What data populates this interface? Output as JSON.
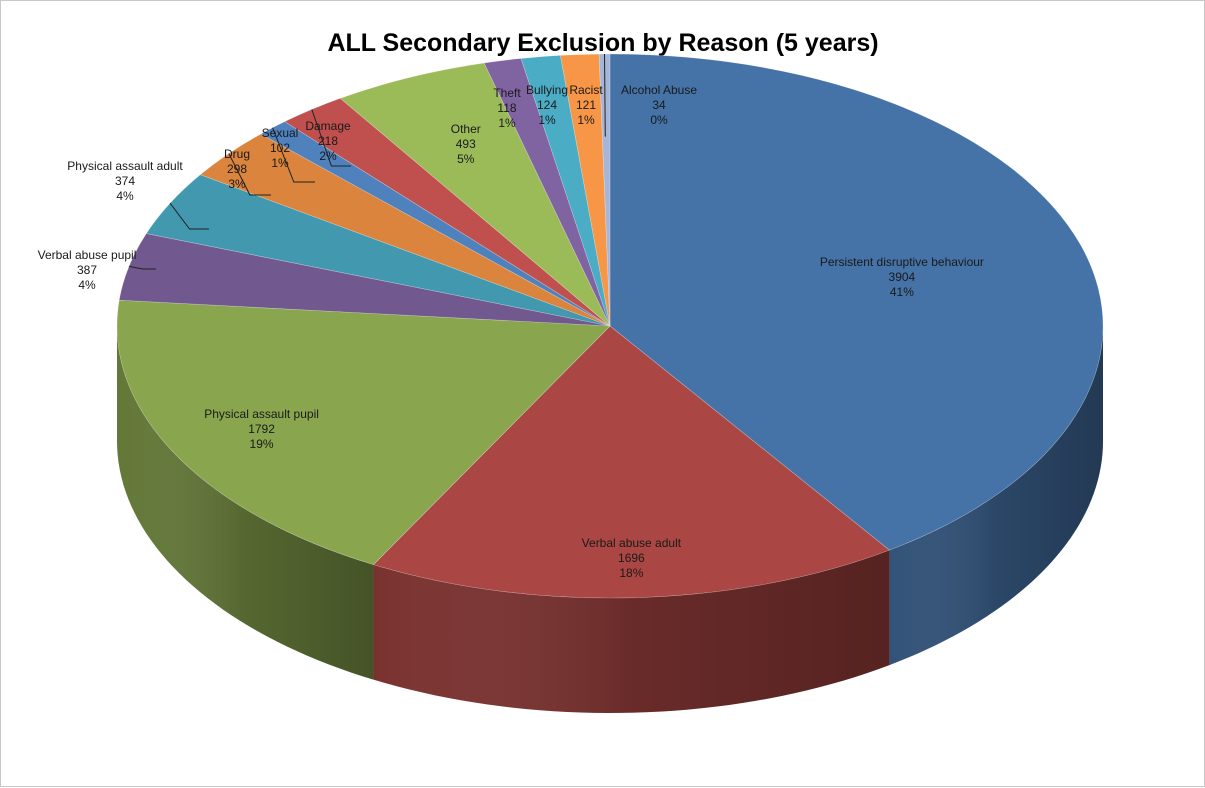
{
  "chart_data": {
    "type": "pie",
    "title": "ALL Secondary Exclusion by Reason (5 years)",
    "slices": [
      {
        "label": "Persistent disruptive behaviour",
        "value": 3904,
        "percent": "41%",
        "color": "#4572A7"
      },
      {
        "label": "Verbal abuse adult",
        "value": 1696,
        "percent": "18%",
        "color": "#AA4643"
      },
      {
        "label": "Physical assault pupil",
        "value": 1792,
        "percent": "19%",
        "color": "#89A54E"
      },
      {
        "label": "Verbal abuse pupil",
        "value": 387,
        "percent": "4%",
        "color": "#71588F"
      },
      {
        "label": "Physical assault adult",
        "value": 374,
        "percent": "4%",
        "color": "#4198AF"
      },
      {
        "label": "Drug",
        "value": 298,
        "percent": "3%",
        "color": "#DB843D"
      },
      {
        "label": "Sexual",
        "value": 102,
        "percent": "1%",
        "color": "#4F81BD"
      },
      {
        "label": "Damage",
        "value": 218,
        "percent": "2%",
        "color": "#C0504D"
      },
      {
        "label": "Other",
        "value": 493,
        "percent": "5%",
        "color": "#9BBB59"
      },
      {
        "label": "Theft",
        "value": 118,
        "percent": "1%",
        "color": "#8064A2"
      },
      {
        "label": "Bullying",
        "value": 124,
        "percent": "1%",
        "color": "#4BACC6"
      },
      {
        "label": "Racist",
        "value": 121,
        "percent": "1%",
        "color": "#F79646"
      },
      {
        "label": "Alcohol Abuse",
        "value": 34,
        "percent": "0%",
        "color": "#A5B6D8"
      }
    ]
  }
}
